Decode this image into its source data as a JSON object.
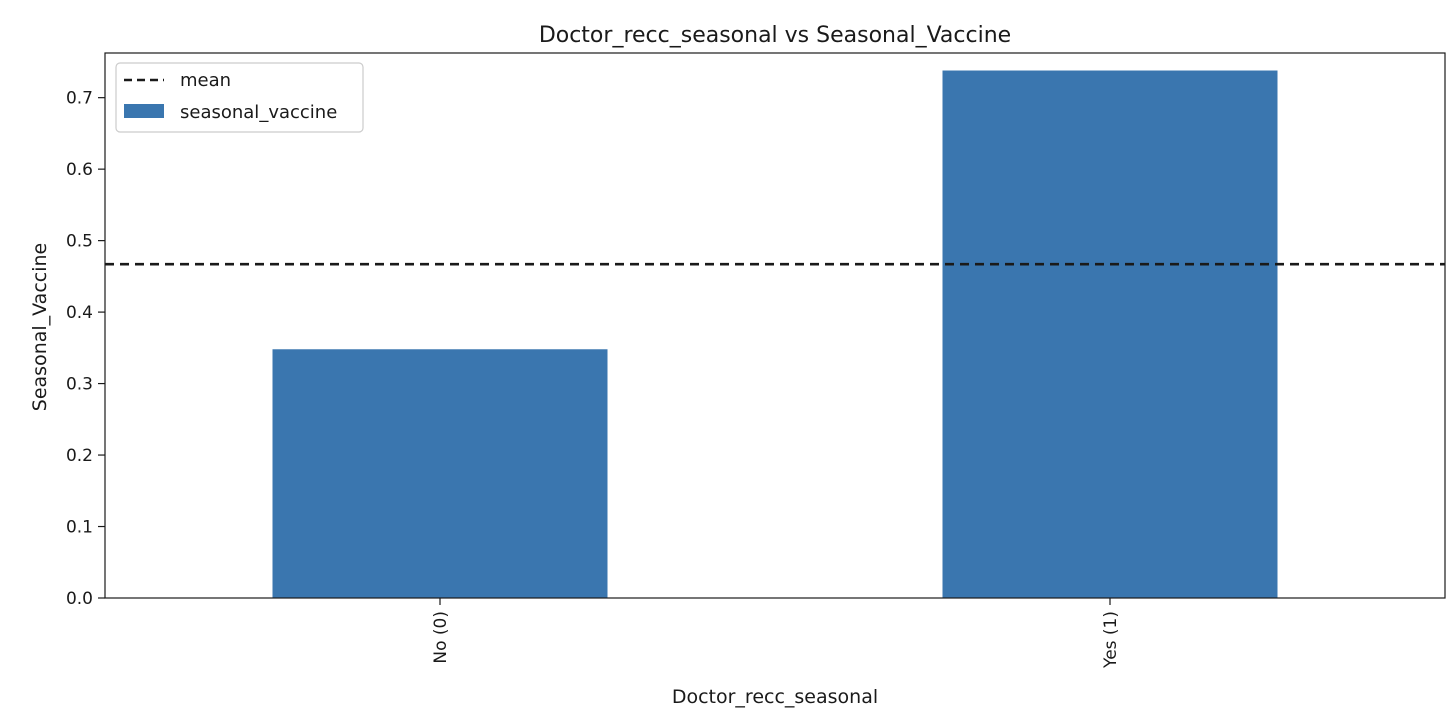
{
  "chart_data": {
    "type": "bar",
    "title": "Doctor_recc_seasonal vs Seasonal_Vaccine",
    "xlabel": "Doctor_recc_seasonal",
    "ylabel": "Seasonal_Vaccine",
    "categories": [
      "No (0)",
      "Yes (1)"
    ],
    "series": [
      {
        "name": "seasonal_vaccine",
        "values": [
          0.348,
          0.738
        ],
        "color": "#3a76af"
      }
    ],
    "reference_lines": [
      {
        "name": "mean",
        "value": 0.467,
        "style": "dashed",
        "color": "#1a1a1a"
      }
    ],
    "ylim": [
      0,
      0.7625
    ],
    "yticks": [
      0.0,
      0.1,
      0.2,
      0.3,
      0.4,
      0.5,
      0.6,
      0.7
    ],
    "ytick_labels": [
      "0.0",
      "0.1",
      "0.2",
      "0.3",
      "0.4",
      "0.5",
      "0.6",
      "0.7"
    ],
    "grid": false,
    "legend_position": "top-left"
  }
}
